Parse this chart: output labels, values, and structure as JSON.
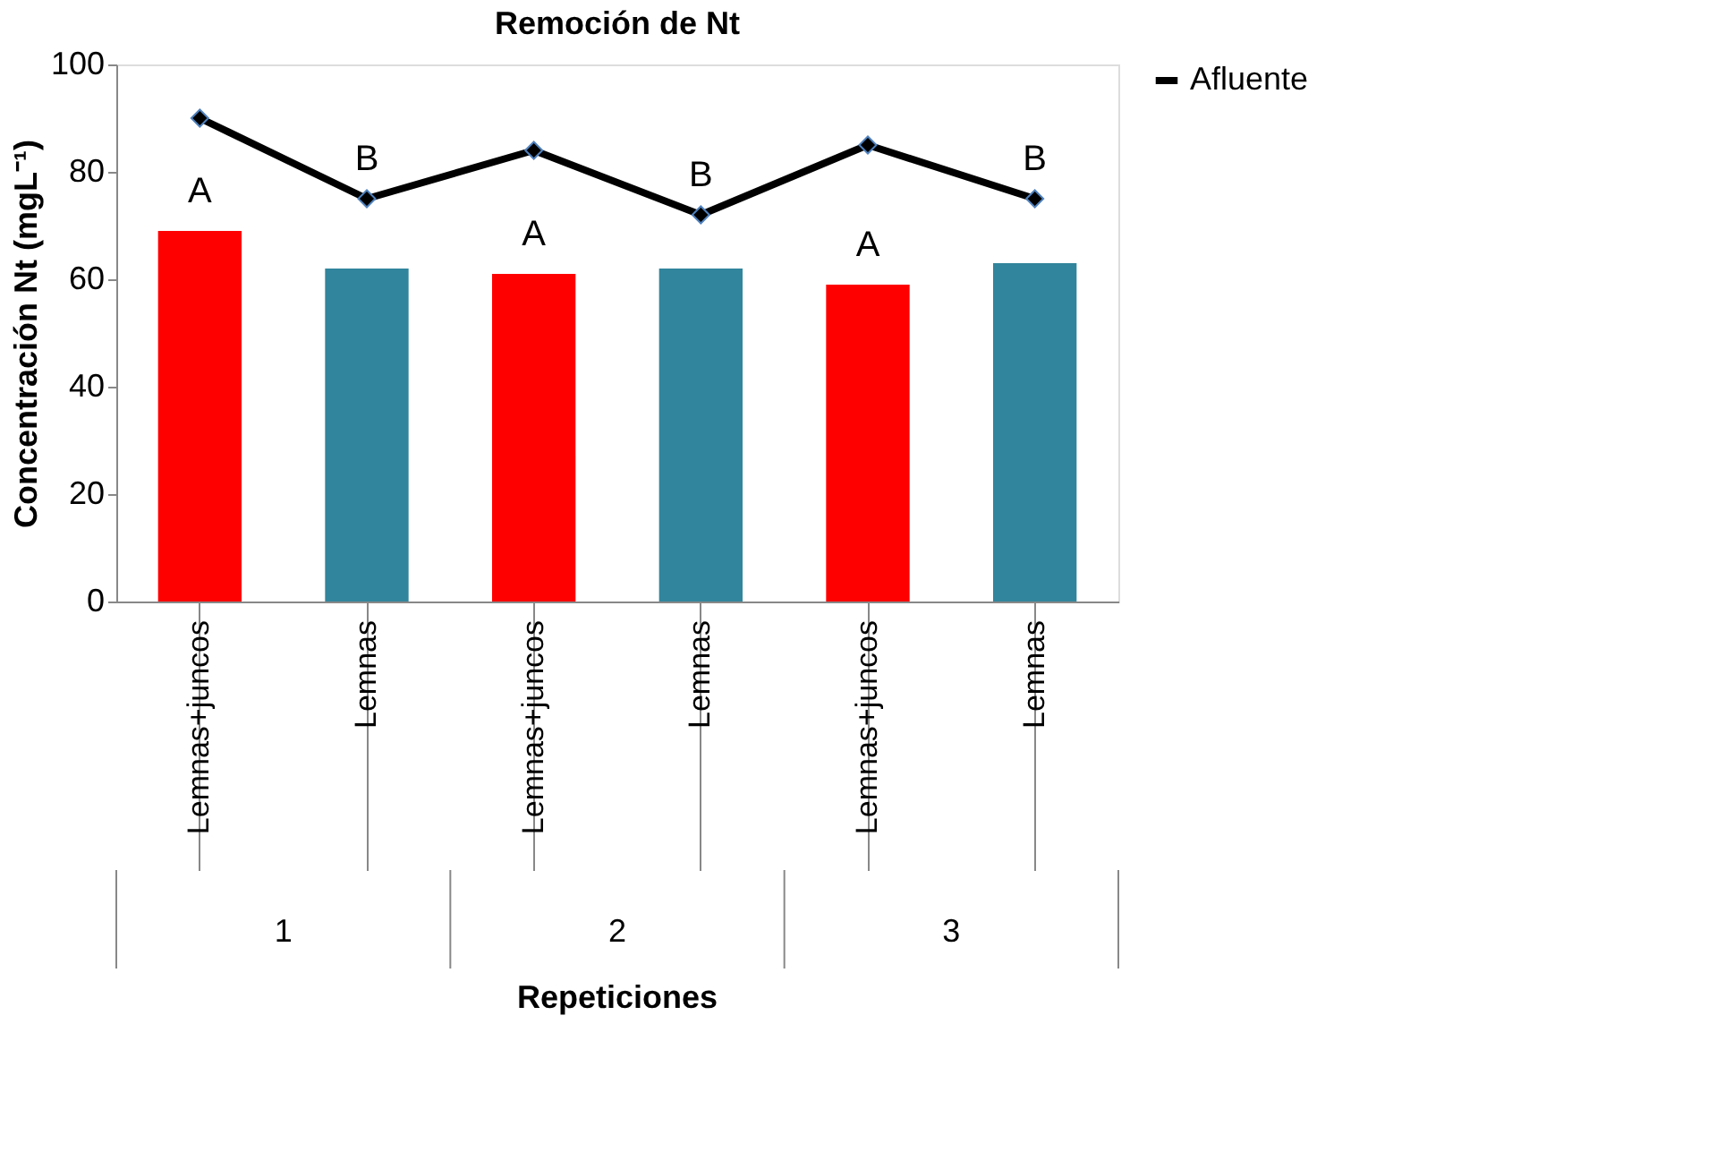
{
  "chart_data": {
    "type": "bar",
    "title": "Remoción de Nt",
    "xlabel": "Repeticiones",
    "ylabel": "Concentración Nt (mgL⁻¹)",
    "categories": [
      "Lemnas+juncos",
      "Lemnas",
      "Lemnas+juncos",
      "Lemnas",
      "Lemnas+juncos",
      "Lemnas"
    ],
    "series": [
      {
        "colors": [
          "#ff0000",
          "#31859c",
          "#ff0000",
          "#31859c",
          "#ff0000",
          "#31859c"
        ],
        "values": [
          69,
          62,
          61,
          62,
          59,
          63
        ]
      },
      {
        "type": "line",
        "name": "Afluente",
        "color": "#000000",
        "marker": "diamond",
        "values": [
          90,
          75,
          84,
          72,
          85,
          75
        ]
      }
    ],
    "annotations": [
      "A",
      "B",
      "A",
      "B",
      "A",
      "B",
      "1",
      "2",
      "3"
    ],
    "ylim": [
      0,
      100
    ],
    "yticks": [
      0,
      20,
      40,
      60,
      80,
      100
    ],
    "grid": false,
    "legend": "right"
  }
}
